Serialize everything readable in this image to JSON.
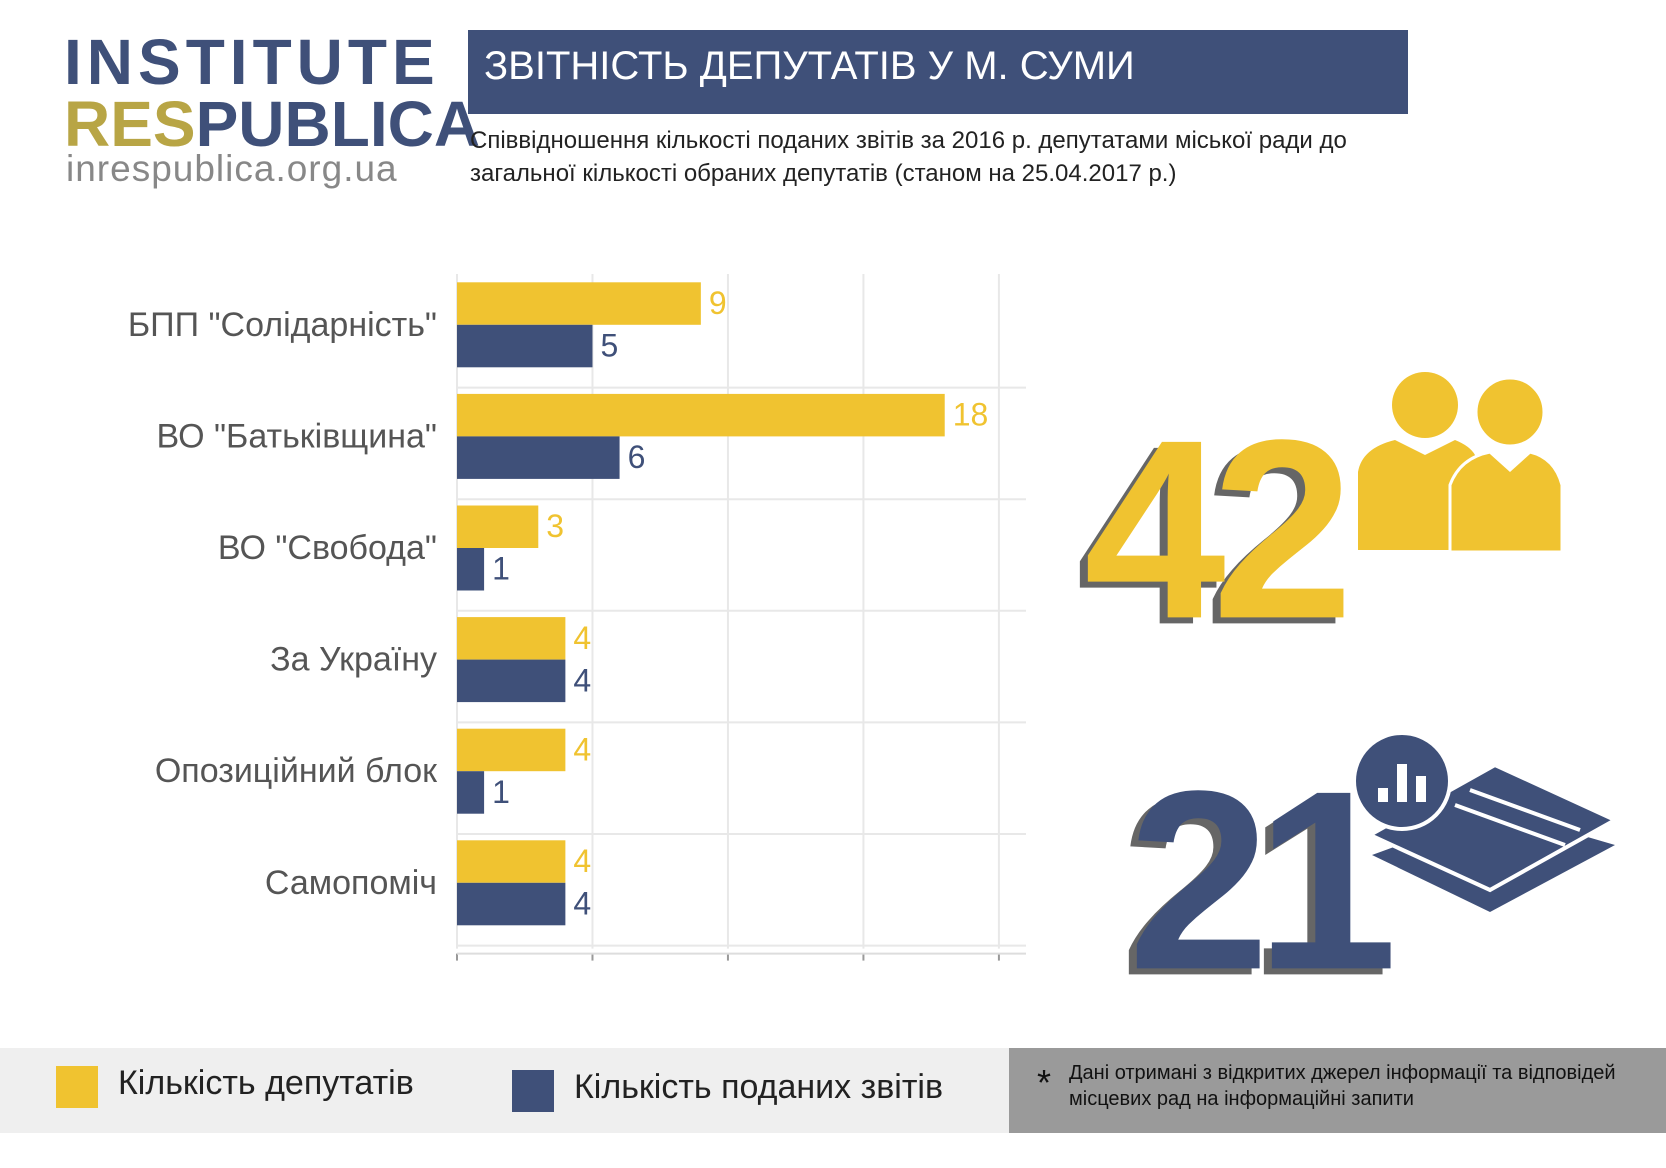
{
  "logo": {
    "line1": "INSTITUTE",
    "res": "RES",
    "publica": "PUBLICA",
    "url": "inrespublica.org.ua"
  },
  "header": {
    "title": "ЗВІТНІСТЬ ДЕПУТАТІВ У М. СУМИ",
    "subtitle": "Співвідношення кількості поданих звітів за 2016 р. депутатами міської ради до загальної кількості обраних депутатів (станом на 25.04.2017 р.)"
  },
  "chart_data": {
    "type": "bar",
    "orientation": "horizontal",
    "categories": [
      "БПП \"Солідарність\"",
      "ВО \"Батьківщина\"",
      "ВО \"Свобода\"",
      "За Україну",
      "Опозиційний блок",
      "Самопоміч"
    ],
    "series": [
      {
        "name": "Кількість депутатів",
        "color": "#f0c330",
        "values": [
          9,
          18,
          3,
          4,
          4,
          4
        ]
      },
      {
        "name": "Кількість поданих звітів",
        "color": "#3f5079",
        "values": [
          5,
          6,
          1,
          4,
          1,
          4
        ]
      }
    ],
    "xlim": [
      0,
      21
    ],
    "xticks": [
      0,
      5,
      10,
      15,
      20
    ],
    "grid": true
  },
  "stats": [
    {
      "value": 42
    },
    {
      "value": 21
    }
  ],
  "note": {
    "mark": "*",
    "text": "Дані отримані з відкритих джерел інформації та відповідей місцевих рад на інформаційні запити"
  }
}
